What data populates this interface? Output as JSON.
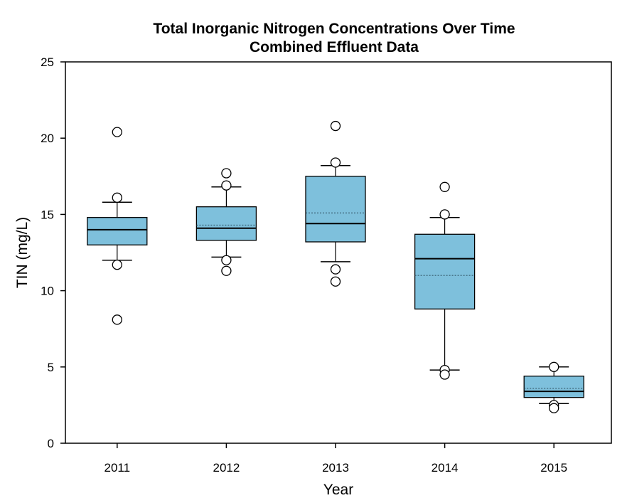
{
  "chart_data": {
    "type": "box",
    "title": "Total Inorganic Nitrogen Concentrations Over Time",
    "subtitle": "Combined Effluent Data",
    "xlabel": "Year",
    "ylabel": "TIN (mg/L)",
    "ylim": [
      0,
      25
    ],
    "yticks": [
      0,
      5,
      10,
      15,
      20,
      25
    ],
    "grid": false,
    "box_color": "#7ec0dc",
    "line_color": "#000000",
    "categories": [
      "2011",
      "2012",
      "2013",
      "2014",
      "2015"
    ],
    "boxes": [
      {
        "label": "2011",
        "whisker_low": 12.0,
        "q1": 13.0,
        "median": 14.0,
        "mean": 14.0,
        "q3": 14.8,
        "whisker_high": 15.8,
        "outliers": [
          20.4,
          16.1,
          11.7,
          8.1
        ]
      },
      {
        "label": "2012",
        "whisker_low": 12.2,
        "q1": 13.3,
        "median": 14.1,
        "mean": 14.3,
        "q3": 15.5,
        "whisker_high": 16.8,
        "outliers": [
          17.7,
          16.9,
          12.0,
          11.3
        ]
      },
      {
        "label": "2013",
        "whisker_low": 11.9,
        "q1": 13.2,
        "median": 14.4,
        "mean": 15.1,
        "q3": 17.5,
        "whisker_high": 18.2,
        "outliers": [
          20.8,
          18.4,
          11.4,
          10.6
        ]
      },
      {
        "label": "2014",
        "whisker_low": 4.8,
        "q1": 8.8,
        "median": 12.1,
        "mean": 11.0,
        "q3": 13.7,
        "whisker_high": 14.8,
        "outliers": [
          16.8,
          15.0,
          4.8,
          4.5
        ]
      },
      {
        "label": "2015",
        "whisker_low": 2.6,
        "q1": 3.0,
        "median": 3.4,
        "mean": 3.6,
        "q3": 4.4,
        "whisker_high": 5.0,
        "outliers": [
          5.0,
          2.5,
          2.3
        ]
      }
    ]
  }
}
